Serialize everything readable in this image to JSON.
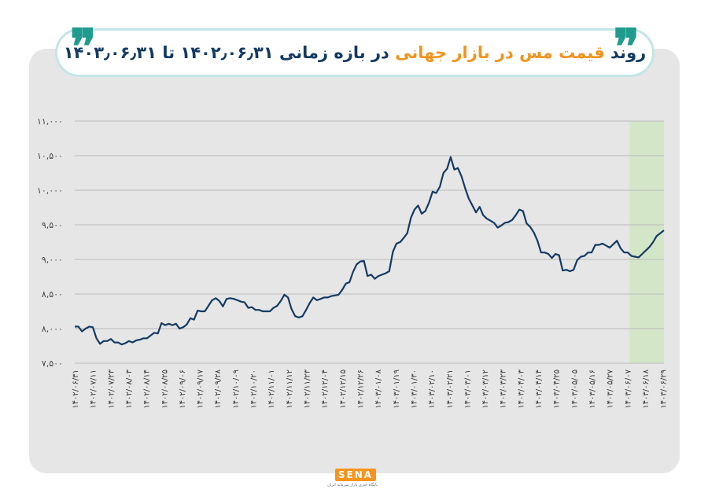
{
  "title": {
    "part1": "روند",
    "highlight": "قیمت مس در بازار جهانی",
    "part2": "در بازه زمانی ۱۴۰۲٫۰۶٫۳۱ تا ۱۴۰۳٫۰۶٫۳۱"
  },
  "logo": {
    "text": "SENA",
    "subtitle": "پایگاه خبری بازار سرمایه ایران"
  },
  "colors": {
    "line": "#143a63",
    "highlight_band": "#cfe6c2",
    "title": "#143a63",
    "accent": "#f0941f",
    "quote": "#1f9c8e"
  },
  "chart_data": {
    "type": "line",
    "title": "روند قیمت مس در بازار جهانی در بازه زمانی ۱۴۰۲٫۰۶٫۳۱ تا ۱۴۰۳٫۰۶٫۳۱",
    "xlabel": "",
    "ylabel": "",
    "ylim": [
      7500,
      11000
    ],
    "yticks": [
      7500,
      8000,
      8500,
      9000,
      9500,
      10000,
      10500,
      11000
    ],
    "ytick_labels": [
      "۷,۵۰۰",
      "۸,۰۰۰",
      "۸,۵۰۰",
      "۹,۰۰۰",
      "۹,۵۰۰",
      "۱۰,۰۰۰",
      "۱۰,۵۰۰",
      "۱۱,۰۰۰"
    ],
    "grid": true,
    "xtick_labels": [
      "۱۴۰۲/۰۶/۳۱",
      "۱۴۰۲/۰۷/۱۱",
      "۱۴۰۲/۰۷/۲۳",
      "۱۴۰۲/۰۸/۰۳",
      "۱۴۰۲/۰۸/۱۴",
      "۱۴۰۲/۰۸/۲۵",
      "۱۴۰۲/۰۹/۰۶",
      "۱۴۰۲/۰۹/۱۷",
      "۱۴۰۲/۰۹/۲۸",
      "۱۴۰۲/۱۰/۰۹",
      "۱۴۰۲/۱۰/۲۰",
      "۱۴۰۲/۱۱/۰۱",
      "۱۴۰۲/۱۱/۱۲",
      "۱۴۰۲/۱۱/۲۳",
      "۱۴۰۲/۱۲/۰۴",
      "۱۴۰۲/۱۲/۱۵",
      "۱۴۰۲/۱۲/۲۶",
      "۱۴۰۳/۰۱/۰۸",
      "۱۴۰۳/۰۱/۱۹",
      "۱۴۰۳/۰۱/۳۰",
      "۱۴۰۳/۰۲/۱۰",
      "۱۴۰۳/۰۲/۲۱",
      "۱۴۰۳/۰۳/۰۱",
      "۱۴۰۳/۰۳/۱۲",
      "۱۴۰۳/۰۳/۲۳",
      "۱۴۰۳/۰۴/۰۳",
      "۱۴۰۳/۰۴/۱۴",
      "۱۴۰۳/۰۴/۲۵",
      "۱۴۰۳/۰۵/۰۵",
      "۱۴۰۳/۰۵/۱۶",
      "۱۴۰۳/۰۵/۲۷",
      "۱۴۰۳/۰۶/۰۷",
      "۱۴۰۳/۰۶/۱۸",
      "۱۴۰۳/۰۶/۲۹"
    ],
    "highlight_range": [
      "۱۴۰۳/۰۶/۰۷",
      "۱۴۰۳/۰۶/۳۱"
    ],
    "series": [
      {
        "values": [
          8030,
          8030,
          7960,
          8000,
          8030,
          8020,
          7860,
          7780,
          7820,
          7820,
          7850,
          7800,
          7800,
          7770,
          7790,
          7820,
          7800,
          7830,
          7840,
          7860,
          7860,
          7900,
          7940,
          7930,
          8080,
          8050,
          8070,
          8050,
          8070,
          8000,
          8020,
          8060,
          8150,
          8130,
          8260,
          8250,
          8250,
          8330,
          8410,
          8440,
          8400,
          8320,
          8430,
          8440,
          8430,
          8410,
          8390,
          8380,
          8300,
          8310,
          8270,
          8270,
          8250,
          8250,
          8250,
          8300,
          8330,
          8400,
          8490,
          8450,
          8280,
          8180,
          8160,
          8180,
          8270,
          8370,
          8450,
          8410,
          8430,
          8450,
          8450,
          8470,
          8480,
          8490,
          8560,
          8650,
          8670,
          8820,
          8930,
          8970,
          8980,
          8760,
          8780,
          8720,
          8760,
          8780,
          8800,
          8830,
          9110,
          9230,
          9250,
          9310,
          9380,
          9600,
          9720,
          9780,
          9660,
          9700,
          9820,
          9980,
          9960,
          10050,
          10250,
          10310,
          10480,
          10300,
          10320,
          10200,
          10030,
          9880,
          9780,
          9680,
          9760,
          9640,
          9590,
          9560,
          9530,
          9460,
          9490,
          9530,
          9540,
          9570,
          9640,
          9720,
          9700,
          9520,
          9470,
          9390,
          9270,
          9100,
          9100,
          9080,
          9020,
          9080,
          9060,
          8840,
          8850,
          8830,
          8850,
          8990,
          9040,
          9050,
          9100,
          9100,
          9210,
          9210,
          9230,
          9200,
          9170,
          9220,
          9270,
          9160,
          9100,
          9100,
          9050,
          9040,
          9030,
          9080,
          9130,
          9180,
          9250,
          9340,
          9380,
          9420
        ]
      }
    ]
  }
}
